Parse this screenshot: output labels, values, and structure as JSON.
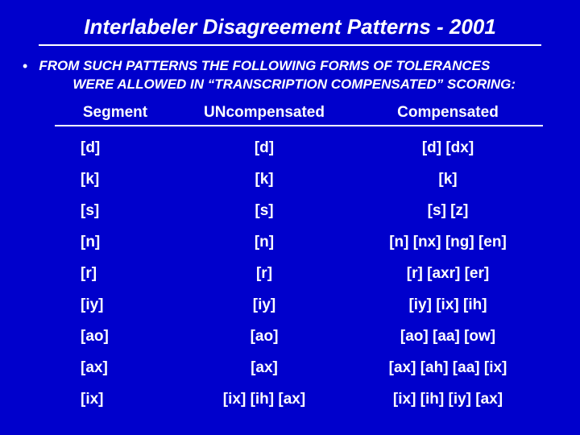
{
  "title": "Interlabeler Disagreement Patterns - 2001",
  "bullet_line1": "FROM SUCH PATTERNS THE FOLLOWING FORMS OF TOLERANCES",
  "bullet_line2": "WERE ALLOWED IN “TRANSCRIPTION COMPENSATED” SCORING:",
  "columns": {
    "c1": "Segment",
    "c2": "UNcompensated",
    "c3": "Compensated"
  },
  "rows": [
    {
      "c1": "[d]",
      "c2": "[d]",
      "c3": "[d] [dx]"
    },
    {
      "c1": "[k]",
      "c2": "[k]",
      "c3": "[k]"
    },
    {
      "c1": "[s]",
      "c2": "[s]",
      "c3": "[s] [z]"
    },
    {
      "c1": "[n]",
      "c2": "[n]",
      "c3": "[n] [nx] [ng] [en]"
    },
    {
      "c1": "[r]",
      "c2": "[r]",
      "c3": "[r] [axr] [er]"
    },
    {
      "c1": "[iy]",
      "c2": "[iy]",
      "c3": "[iy] [ix] [ih]"
    },
    {
      "c1": "[ao]",
      "c2": "[ao]",
      "c3": "[ao] [aa] [ow]"
    },
    {
      "c1": "[ax]",
      "c2": "[ax]",
      "c3": "[ax] [ah] [aa] [ix]"
    },
    {
      "c1": "[ix]",
      "c2": "[ix] [ih] [ax]",
      "c3": "[ix] [ih] [iy] [ax]"
    }
  ],
  "colors": {
    "background": "#0000cc",
    "text": "#ffffff",
    "rule": "#ffffff"
  }
}
